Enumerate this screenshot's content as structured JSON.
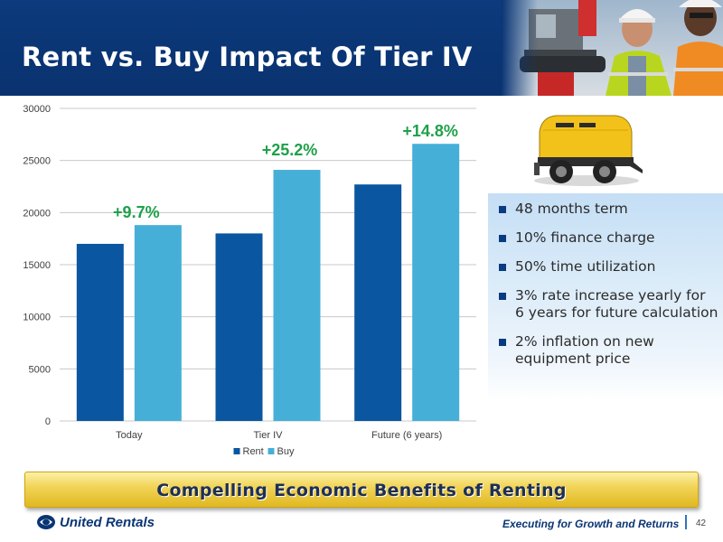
{
  "slide": {
    "title": "Rent vs. Buy Impact Of Tier IV",
    "banner": "Compelling Economic Benefits of Renting",
    "footer_tagline": "Executing for Growth and Returns",
    "page_number": "42",
    "brand": "United Rentals"
  },
  "bullets": [
    "48 months term",
    "10% finance charge",
    "50% time utilization",
    "3% rate increase yearly for 6 years for future calculation",
    "2% inflation on new equipment price"
  ],
  "colors": {
    "header": "#0a3574",
    "rent": "#0a56a0",
    "buy": "#46afd8",
    "pct_label": "#1fa04a",
    "banner": "#f2d55a"
  },
  "chart_data": {
    "type": "bar",
    "categories": [
      "Today",
      "Tier IV",
      "Future (6 years)"
    ],
    "series": [
      {
        "name": "Rent",
        "values": [
          17000,
          18000,
          22700
        ]
      },
      {
        "name": "Buy",
        "values": [
          18800,
          24100,
          26600
        ]
      }
    ],
    "annotations": [
      "+9.7%",
      "+25.2%",
      "+14.8%"
    ],
    "yticks": [
      0,
      5000,
      10000,
      15000,
      20000,
      25000,
      30000
    ],
    "ylim": [
      0,
      30000
    ],
    "grid": true,
    "legend": "bottom-center"
  }
}
